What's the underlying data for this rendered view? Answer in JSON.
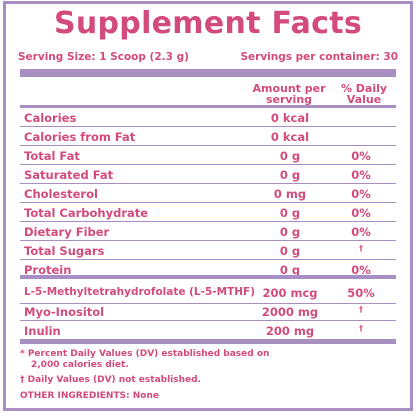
{
  "title": "Supplement Facts",
  "serving_size": "Serving Size: 1 Scoop (2.3 g)",
  "servings_per_container": "Servings per container: 30",
  "header": {
    "amount_line1": "Amount per",
    "amount_line2": "serving",
    "dv_line1": "% Daily",
    "dv_line2": "Value"
  },
  "rows": [
    {
      "name": "Calories",
      "amount": "0 kcal",
      "dv": ""
    },
    {
      "name": "Calories from Fat",
      "amount": "0 kcal",
      "dv": ""
    },
    {
      "name": "Total Fat",
      "amount": "0 g",
      "dv": "0%"
    },
    {
      "name": "Saturated Fat",
      "amount": "0 g",
      "dv": "0%"
    },
    {
      "name": "Cholesterol",
      "amount": "0 mg",
      "dv": "0%"
    },
    {
      "name": "Total Carbohydrate",
      "amount": "0 g",
      "dv": "0%"
    },
    {
      "name": "Dietary Fiber",
      "amount": "0 g",
      "dv": "0%"
    },
    {
      "name": "Total Sugars",
      "amount": "0 g",
      "dv": "†"
    },
    {
      "name": "Protein",
      "amount": "0 g",
      "dv": "0%"
    },
    {
      "name": "L-5-Methyltetrahydrofolate (L-5-MTHF)",
      "amount": "200 mcg",
      "dv": "50%"
    },
    {
      "name": "Myo-Inositol",
      "amount": "2000 mg",
      "dv": "†"
    },
    {
      "name": "Inulin",
      "amount": "200 mg",
      "dv": "†"
    }
  ],
  "footnotes": {
    "percent_dv_line1": "* Percent Daily Values (DV) established based on",
    "percent_dv_line2": "2,000 calories diet.",
    "dv_not_established": "† Daily Values (DV) not established.",
    "other_ingredients": "OTHER INGREDIENTS: None"
  },
  "colors": {
    "text": "#d34a7c",
    "rules": "#a88fc3"
  }
}
